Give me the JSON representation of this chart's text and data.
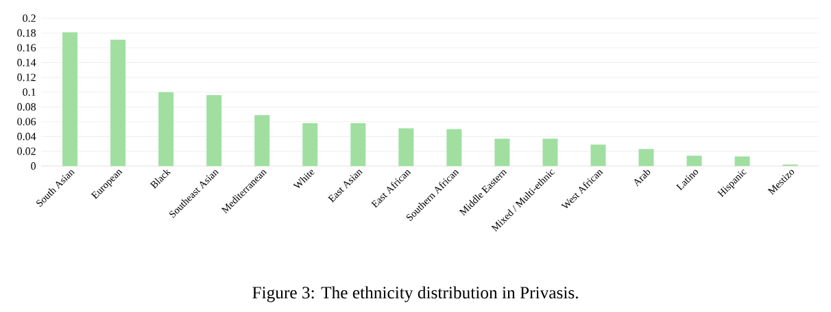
{
  "chart_data": {
    "type": "bar",
    "categories": [
      "South Asian",
      "European",
      "Black",
      "Southeast Asian",
      "Mediterranean",
      "White",
      "East Asian",
      "East African",
      "Southern African",
      "Middle Eastern",
      "Mixed / Multi-ethnic",
      "West African",
      "Arab",
      "Latino",
      "Hispanic",
      "Mestizo"
    ],
    "values": [
      0.181,
      0.171,
      0.1,
      0.096,
      0.069,
      0.058,
      0.058,
      0.051,
      0.05,
      0.037,
      0.037,
      0.029,
      0.023,
      0.014,
      0.013,
      0.002
    ],
    "color": "#a0dfa0",
    "ylim": [
      0,
      0.2
    ],
    "yticks": [
      0,
      0.02,
      0.04,
      0.06,
      0.08,
      0.1,
      0.12,
      0.14,
      0.16,
      0.18,
      0.2
    ],
    "grid": "y",
    "annotations": [
      "Figure 3: The ethnicity distribution in Privasis."
    ]
  }
}
